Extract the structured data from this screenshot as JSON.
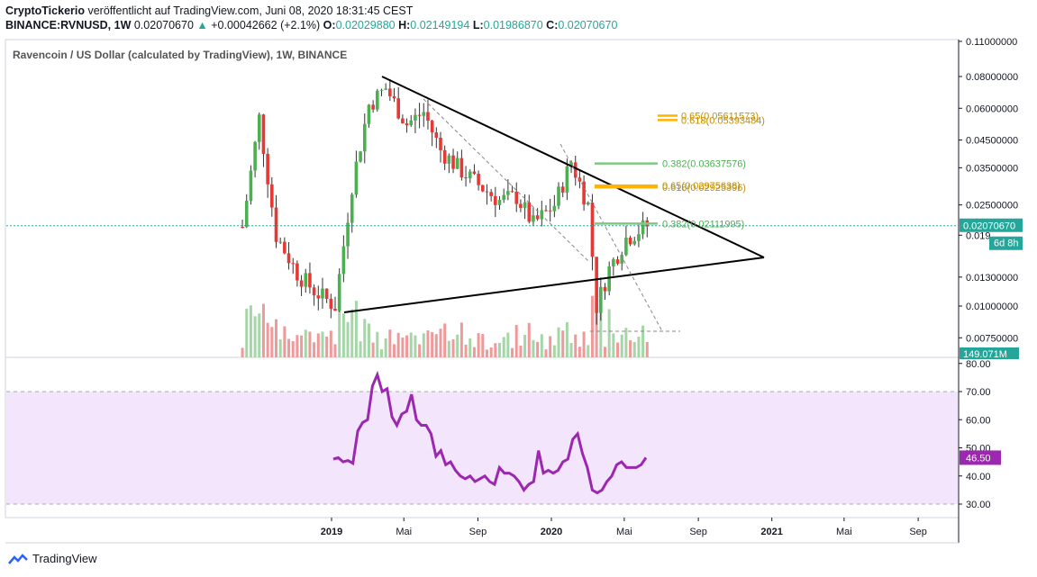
{
  "header": {
    "author": "CryptoTickerio",
    "published_text": " veröffentlicht auf TradingView.com, Juni 08, 2020 18:31:45 CEST",
    "symbol": "BINANCE:RVNUSD, 1W",
    "price": "0.02070670",
    "change_arrow": "▲",
    "change": "+0.00042662 (+2.1%)",
    "o_label": "O:",
    "o": "0.02029880",
    "h_label": "H:",
    "h": "0.02149194",
    "l_label": "L:",
    "l": "0.01986870",
    "c_label": "C:",
    "c": "0.02070670"
  },
  "footer": {
    "brand": "TradingView"
  },
  "chart_data": [
    {
      "type": "candlestick",
      "title": "Ravencoin / US Dollar (calculated by TradingView), 1W, BINANCE",
      "y_scale": "log",
      "y_ticks": [
        "0.11000000",
        "0.08000000",
        "0.06000000",
        "0.04500000",
        "0.03500000",
        "0.02500000",
        "0.019",
        "0.01300000",
        "0.01000000",
        "0.00750000"
      ],
      "y_tick_values": [
        0.11,
        0.08,
        0.06,
        0.045,
        0.035,
        0.025,
        0.019,
        0.013,
        0.01,
        0.0075
      ],
      "x_ticks": [
        "2019",
        "Mai",
        "Sep",
        "2020",
        "Mai",
        "Sep",
        "2021",
        "Mai",
        "Sep"
      ],
      "x_tick_dates": [
        "2019-01-01",
        "2019-05-01",
        "2019-09-01",
        "2020-01-01",
        "2020-05-01",
        "2020-09-01",
        "2021-01-01",
        "2021-05-01",
        "2021-09-01"
      ],
      "current_price_label": "0.02070670",
      "current_price": 0.0207067,
      "countdown_label": "6d 8h",
      "volume_label": "149.071M",
      "series": [
        {
          "name": "close",
          "x": [
            "2018-08-06",
            "2018-09-03",
            "2018-10-01",
            "2018-11-05",
            "2018-12-03",
            "2019-01-07",
            "2019-02-04",
            "2019-03-04",
            "2019-04-01",
            "2019-05-06",
            "2019-06-03",
            "2019-07-01",
            "2019-08-05",
            "2019-09-02",
            "2019-10-07",
            "2019-11-04",
            "2019-12-02",
            "2020-01-06",
            "2020-02-03",
            "2020-03-02",
            "2020-03-16",
            "2020-04-06",
            "2020-05-04",
            "2020-06-01",
            "2020-06-08"
          ],
          "y": [
            0.0205,
            0.055,
            0.019,
            0.0135,
            0.0115,
            0.01,
            0.03,
            0.062,
            0.072,
            0.052,
            0.058,
            0.041,
            0.034,
            0.03,
            0.026,
            0.027,
            0.021,
            0.025,
            0.037,
            0.025,
            0.01,
            0.014,
            0.0185,
            0.0203,
            0.0207
          ]
        }
      ],
      "annotations": [
        {
          "text": "0.618(0.05393484)",
          "price": 0.0539
        },
        {
          "text": "0.65(0.05611573)",
          "price": 0.0561
        },
        {
          "text": "0.382(0.03637576)",
          "price": 0.0364
        },
        {
          "text": "0.618(0.02925396)",
          "price": 0.0293
        },
        {
          "text": "0.65(0.02975638)",
          "price": 0.0298
        },
        {
          "text": "0.382(0.02111995)",
          "price": 0.0211
        }
      ]
    },
    {
      "type": "line",
      "name": "RSI",
      "y_ticks": [
        "80.00",
        "70.00",
        "60.00",
        "50.00",
        "40.00",
        "30.00"
      ],
      "y_tick_values": [
        80,
        70,
        60,
        50,
        40,
        30
      ],
      "ylim": [
        28,
        80
      ],
      "current_value_label": "46.50",
      "current_value": 46.5,
      "color": "#9c27b0",
      "band": [
        30,
        70
      ]
    }
  ]
}
